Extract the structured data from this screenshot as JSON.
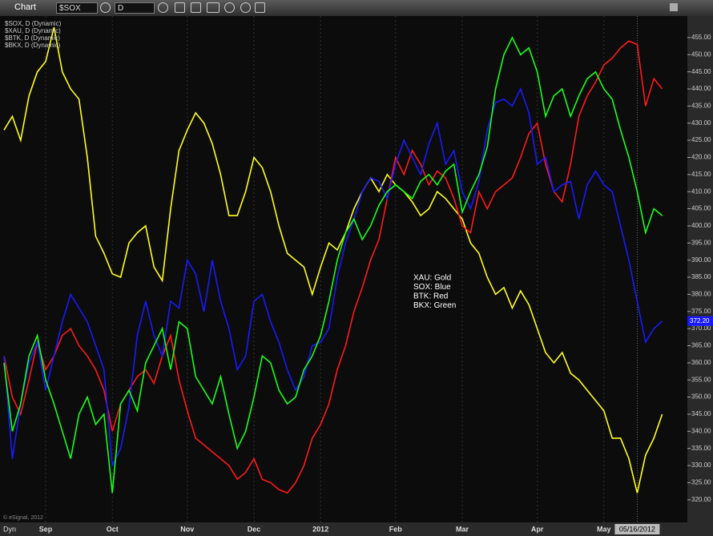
{
  "toolbar": {
    "title": "Chart",
    "symbol": "$SOX",
    "interval": "D"
  },
  "chart_data": {
    "type": "line",
    "categories": [
      null,
      null,
      null,
      null,
      null,
      "Sep",
      null,
      null,
      null,
      null,
      null,
      null,
      null,
      "Oct",
      null,
      null,
      null,
      null,
      null,
      null,
      null,
      null,
      "Nov",
      null,
      null,
      null,
      null,
      null,
      null,
      null,
      "Dec",
      null,
      null,
      null,
      null,
      null,
      null,
      null,
      "2012",
      null,
      null,
      null,
      null,
      null,
      null,
      null,
      null,
      "Feb",
      null,
      null,
      null,
      null,
      null,
      null,
      null,
      "Mar",
      null,
      null,
      null,
      null,
      null,
      null,
      null,
      null,
      "Apr",
      null,
      null,
      null,
      null,
      null,
      null,
      null,
      "May",
      null,
      null,
      null,
      "05/16/2012",
      null,
      null,
      null
    ],
    "highlighted_category": 76,
    "series": [
      {
        "name": "$SOX, D (Dynamic)",
        "color": "#1a1aff",
        "last_value_label": "372.20",
        "values": [
          362,
          332,
          348,
          360,
          366,
          352,
          362,
          372,
          380,
          376,
          372,
          365,
          358,
          330,
          335,
          347,
          368,
          378,
          368,
          362,
          378,
          376,
          390,
          386,
          375,
          390,
          378,
          370,
          358,
          362,
          378,
          380,
          372,
          366,
          358,
          352,
          356,
          365,
          366,
          370,
          385,
          395,
          402,
          410,
          414,
          413,
          408,
          418,
          425,
          420,
          415,
          424,
          430,
          418,
          422,
          410,
          405,
          413,
          428,
          436,
          437,
          435,
          440,
          433,
          418,
          420,
          410,
          412,
          413,
          402,
          412,
          416,
          412,
          410,
          400,
          390,
          378,
          366,
          370,
          372.2
        ]
      },
      {
        "name": "$XAU, D (Dynamic)",
        "color": "#ffff1a",
        "values": [
          428,
          432,
          425,
          438,
          445,
          448,
          458,
          445,
          440,
          437,
          420,
          397,
          392,
          386,
          385,
          395,
          398,
          400,
          388,
          384,
          405,
          422,
          428,
          433,
          430,
          424,
          415,
          403,
          403,
          410,
          420,
          417,
          410,
          400,
          392,
          390,
          388,
          380,
          388,
          395,
          393,
          398,
          405,
          410,
          414,
          410,
          415,
          412,
          410,
          407,
          403,
          405,
          410,
          408,
          405,
          402,
          395,
          392,
          385,
          380,
          382,
          376,
          381,
          377,
          370,
          363,
          360,
          363,
          357,
          355,
          352,
          349,
          346,
          338,
          338,
          332,
          322,
          333,
          338,
          345
        ]
      },
      {
        "name": "$BTK, D (Dynamic)",
        "color": "#ff1a1a",
        "values": [
          362,
          350,
          345,
          355,
          366,
          358,
          362,
          368,
          370,
          365,
          362,
          358,
          352,
          340,
          348,
          352,
          356,
          358,
          354,
          362,
          368,
          355,
          346,
          338,
          336,
          334,
          332,
          330,
          326,
          328,
          332,
          326,
          325,
          323,
          322,
          325,
          330,
          338,
          342,
          348,
          358,
          365,
          375,
          382,
          390,
          396,
          408,
          420,
          415,
          422,
          418,
          412,
          416,
          414,
          408,
          400,
          398,
          410,
          405,
          410,
          412,
          414,
          420,
          427,
          430,
          418,
          410,
          407,
          418,
          432,
          438,
          442,
          447,
          449,
          452,
          454,
          453,
          435,
          443,
          440
        ]
      },
      {
        "name": "$BKX, D (Dynamic)",
        "color": "#1aff1a",
        "values": [
          360,
          340,
          348,
          362,
          368,
          355,
          348,
          340,
          332,
          345,
          350,
          342,
          345,
          322,
          348,
          352,
          346,
          360,
          365,
          370,
          358,
          372,
          370,
          356,
          352,
          348,
          356,
          345,
          335,
          340,
          350,
          362,
          360,
          352,
          348,
          350,
          358,
          362,
          368,
          378,
          390,
          398,
          402,
          396,
          400,
          406,
          410,
          412,
          410,
          408,
          413,
          415,
          412,
          416,
          418,
          404,
          410,
          415,
          423,
          440,
          450,
          455,
          450,
          452,
          445,
          432,
          438,
          440,
          432,
          438,
          443,
          445,
          440,
          437,
          428,
          420,
          410,
          398,
          405,
          403
        ]
      }
    ],
    "annotation": [
      "XAU:  Gold",
      "SOX:  Blue",
      "BTK:  Red",
      "BKX:  Green"
    ],
    "ylim": [
      313.4,
      461.3
    ],
    "yticks": [
      {
        "value": 320,
        "label": "320.00"
      },
      {
        "value": 325,
        "label": "325.00"
      },
      {
        "value": 330,
        "label": "330.00"
      },
      {
        "value": 335,
        "label": "335.00"
      },
      {
        "value": 340,
        "label": "340.00"
      },
      {
        "value": 345,
        "label": "345.00"
      },
      {
        "value": 350,
        "label": "350.00"
      },
      {
        "value": 355,
        "label": "355.00"
      },
      {
        "value": 360,
        "label": "360.00"
      },
      {
        "value": 365,
        "label": "365.00"
      },
      {
        "value": 370,
        "label": "370.00"
      },
      {
        "value": 375,
        "label": "375.00"
      },
      {
        "value": 380,
        "label": "380.00"
      },
      {
        "value": 385,
        "label": "385.00"
      },
      {
        "value": 390,
        "label": "390.00"
      },
      {
        "value": 395,
        "label": "395.00"
      },
      {
        "value": 400,
        "label": "400.00"
      },
      {
        "value": 405,
        "label": "405.00"
      },
      {
        "value": 410,
        "label": "410.00"
      },
      {
        "value": 415,
        "label": "415.00"
      },
      {
        "value": 420,
        "label": "420.00"
      },
      {
        "value": 425,
        "label": "425.00"
      },
      {
        "value": 430,
        "label": "430.00"
      },
      {
        "value": 435,
        "label": "435.00"
      },
      {
        "value": 440,
        "label": "440.00"
      },
      {
        "value": 445,
        "label": "445.00"
      },
      {
        "value": 450,
        "label": "450.00"
      },
      {
        "value": 455,
        "label": "455.00"
      }
    ]
  },
  "footer": {
    "mode": "Dyn",
    "copyright": "© eSignal, 2012"
  }
}
